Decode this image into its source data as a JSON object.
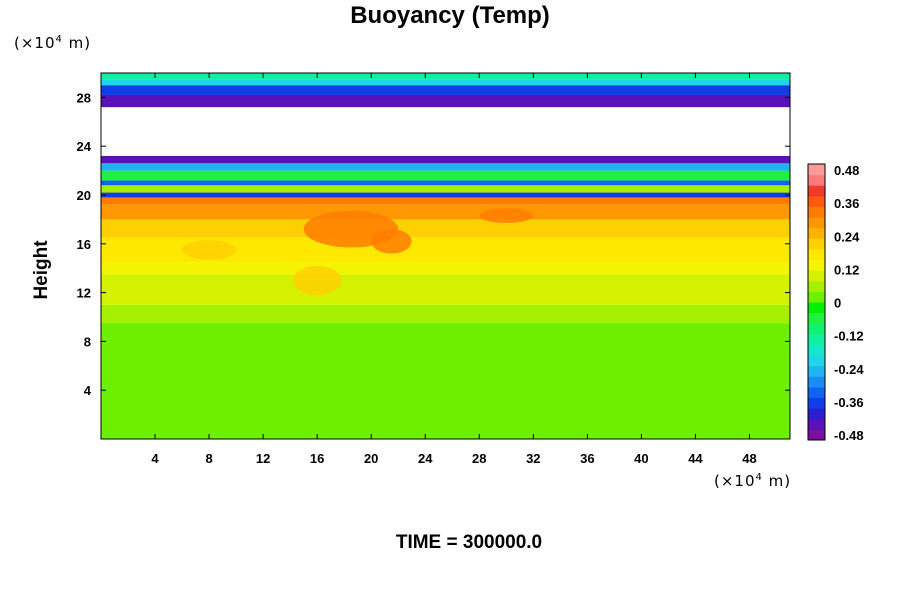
{
  "chart_data": {
    "type": "heatmap",
    "title": "Buoyancy (Temp)",
    "ylabel": "Height",
    "xlabel": "",
    "x_unit_prefix": "(×10",
    "x_unit_exp": "4",
    "x_unit_suffix": " m)",
    "y_unit_prefix": "(×10",
    "y_unit_exp": "4",
    "y_unit_suffix": " m)",
    "footer": "TIME = 300000.0",
    "xlim": [
      0,
      51
    ],
    "ylim": [
      0,
      30
    ],
    "x_ticks": [
      4,
      8,
      12,
      16,
      20,
      24,
      28,
      32,
      36,
      40,
      44,
      48
    ],
    "y_ticks": [
      4,
      8,
      12,
      16,
      20,
      24,
      28
    ],
    "colorbar": {
      "range": [
        -0.48,
        0.48
      ],
      "tick_labels": [
        "0.48",
        "0.36",
        "0.24",
        "0.12",
        "0",
        "-0.12",
        "-0.24",
        "-0.36",
        "-0.48"
      ],
      "colors": [
        "#7a0fa0",
        "#5a12b8",
        "#2a1fd0",
        "#0f3ee6",
        "#1264f0",
        "#1a8cf5",
        "#20b4f2",
        "#20d6e6",
        "#14e8c8",
        "#0ff0a0",
        "#12f070",
        "#22f040",
        "#00f000",
        "#6cf000",
        "#a4f000",
        "#d4f200",
        "#f4f400",
        "#ffe800",
        "#ffd000",
        "#ffb400",
        "#ff9800",
        "#ff7c00",
        "#ff5a10",
        "#f03a2a",
        "#ff7a7a",
        "#ff9a9a"
      ]
    },
    "layers": [
      {
        "y0": 0,
        "y1": 9.5,
        "value": 0.0
      },
      {
        "y0": 9.5,
        "y1": 11.0,
        "value": 0.04
      },
      {
        "y0": 11.0,
        "y1": 13.5,
        "value": 0.09
      },
      {
        "y0": 13.5,
        "y1": 14.5,
        "value": 0.13
      },
      {
        "y0": 14.5,
        "y1": 16.5,
        "value": 0.17
      },
      {
        "y0": 16.5,
        "y1": 18.0,
        "value": 0.21
      },
      {
        "y0": 18.0,
        "y1": 19.2,
        "value": 0.26
      },
      {
        "y0": 19.2,
        "y1": 19.8,
        "value": 0.32
      },
      {
        "y0": 19.8,
        "y1": 20.2,
        "value": -0.36
      },
      {
        "y0": 20.2,
        "y1": 20.8,
        "value": 0.04
      },
      {
        "y0": 20.8,
        "y1": 21.2,
        "value": -0.3
      },
      {
        "y0": 21.2,
        "y1": 22.0,
        "value": -0.06
      },
      {
        "y0": 22.0,
        "y1": 22.6,
        "value": -0.24
      },
      {
        "y0": 22.6,
        "y1": 23.2,
        "value": -0.44
      },
      {
        "y0": 27.2,
        "y1": 28.2,
        "value": -0.44
      },
      {
        "y0": 28.2,
        "y1": 29.0,
        "value": -0.36
      },
      {
        "y0": 29.0,
        "y1": 29.5,
        "value": -0.2
      },
      {
        "y0": 29.5,
        "y1": 30.0,
        "value": -0.12
      }
    ],
    "anomalies": [
      {
        "x": 18.5,
        "y": 17.2,
        "rx": 3.5,
        "ry": 1.5,
        "value": 0.3
      },
      {
        "x": 21.5,
        "y": 16.2,
        "rx": 1.5,
        "ry": 1.0,
        "value": 0.3
      },
      {
        "x": 16.0,
        "y": 13.0,
        "rx": 1.8,
        "ry": 1.2,
        "value": 0.22
      },
      {
        "x": 30.0,
        "y": 18.3,
        "rx": 2.0,
        "ry": 0.6,
        "value": 0.3
      },
      {
        "x": 8.0,
        "y": 15.5,
        "rx": 2.0,
        "ry": 0.8,
        "value": 0.2
      }
    ]
  }
}
